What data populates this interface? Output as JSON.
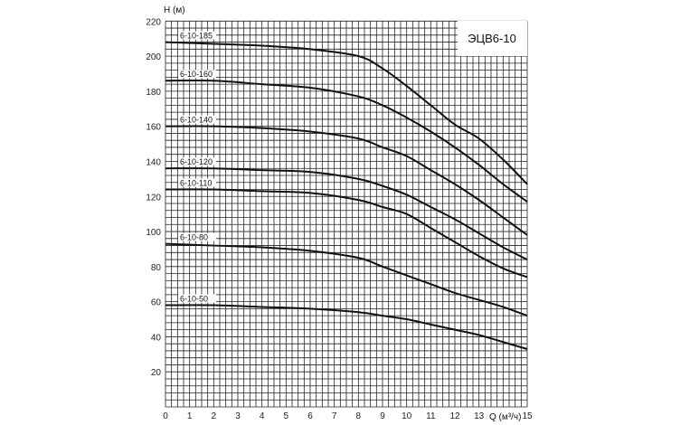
{
  "chart_data": {
    "type": "line",
    "title": "ЭЦВ6-10",
    "xlabel": "Q (м³/ч)",
    "ylabel": "H (м)",
    "xlim": [
      0,
      15
    ],
    "ylim": [
      0,
      220
    ],
    "grid": true,
    "x_ticks": [
      "0",
      "1",
      "2",
      "3",
      "4",
      "5",
      "6",
      "7",
      "8",
      "9",
      "10",
      "11",
      "12",
      "13",
      "15"
    ],
    "y_ticks": [
      "20",
      "40",
      "60",
      "80",
      "100",
      "120",
      "140",
      "160",
      "180",
      "200",
      "220"
    ],
    "x": [
      0,
      2,
      4,
      6,
      8,
      9,
      10,
      11,
      12,
      13,
      14,
      15
    ],
    "series": [
      {
        "name": "6-10-185",
        "values": [
          208,
          207,
          206,
          204,
          200,
          193,
          183,
          172,
          161,
          153,
          141,
          127
        ]
      },
      {
        "name": "6-10-160",
        "values": [
          186,
          186,
          184,
          182,
          177,
          172,
          165,
          157,
          148,
          138,
          127,
          117
        ]
      },
      {
        "name": "6-10-140",
        "values": [
          160,
          160,
          159,
          157,
          153,
          148,
          143,
          135,
          127,
          118,
          108,
          98
        ]
      },
      {
        "name": "6-10-120",
        "values": [
          136,
          136,
          135,
          134,
          130,
          126,
          121,
          114,
          107,
          99,
          91,
          84
        ]
      },
      {
        "name": "6-10-110",
        "values": [
          124,
          124,
          123,
          122,
          118,
          114,
          110,
          102,
          94,
          86,
          79,
          74
        ]
      },
      {
        "name": "6-10-80",
        "values": [
          93,
          92,
          91,
          89,
          85,
          80,
          75,
          70,
          65,
          61,
          57,
          52
        ]
      },
      {
        "name": "6-10-50",
        "values": [
          58,
          58,
          57,
          56,
          54,
          52,
          50,
          47,
          44,
          41,
          37,
          33
        ]
      }
    ],
    "legend_placement": "top-right",
    "line_color": "#111111",
    "grid_color": "#222222"
  }
}
